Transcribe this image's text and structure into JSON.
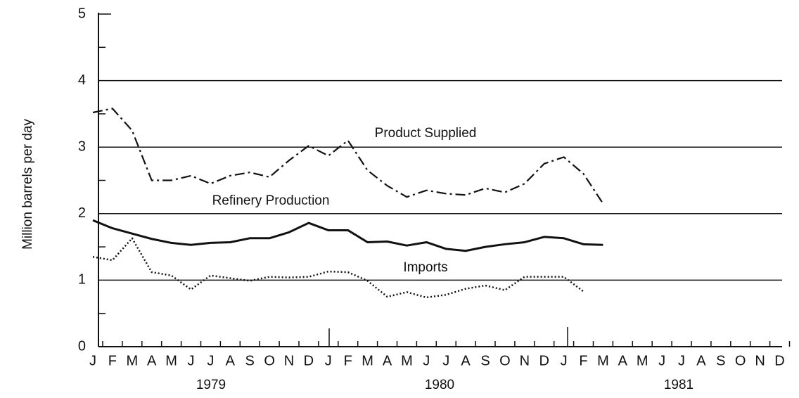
{
  "chart_data": {
    "type": "line",
    "y_label": "Million barrels per day",
    "categories": [
      "J",
      "F",
      "M",
      "A",
      "M",
      "J",
      "J",
      "A",
      "S",
      "O",
      "N",
      "D",
      "J",
      "F",
      "M",
      "A",
      "M",
      "J",
      "J",
      "A",
      "S",
      "O",
      "N",
      "D",
      "J",
      "F",
      "M",
      "A",
      "M",
      "J",
      "J",
      "A",
      "S",
      "O",
      "N",
      "D"
    ],
    "years": [
      "1979",
      "1980",
      "1981"
    ],
    "ylim": [
      0,
      5
    ],
    "yticks": [
      0,
      1,
      2,
      3,
      4,
      5
    ],
    "grid": true,
    "series": [
      {
        "name": "Product Supplied",
        "color": "#111111",
        "style": "dashdot",
        "values": [
          3.52,
          3.58,
          3.25,
          2.5,
          2.5,
          2.57,
          2.45,
          2.57,
          2.62,
          2.55,
          2.8,
          3.02,
          2.87,
          3.1,
          2.65,
          2.42,
          2.25,
          2.35,
          2.3,
          2.28,
          2.38,
          2.32,
          2.45,
          2.75,
          2.85,
          2.6,
          2.15,
          null,
          null,
          null,
          null,
          null,
          null,
          null,
          null,
          null
        ]
      },
      {
        "name": "Refinery Production",
        "color": "#111111",
        "style": "solid",
        "values": [
          1.9,
          1.78,
          1.7,
          1.62,
          1.56,
          1.53,
          1.56,
          1.57,
          1.63,
          1.63,
          1.72,
          1.86,
          1.75,
          1.75,
          1.57,
          1.58,
          1.52,
          1.57,
          1.47,
          1.44,
          1.5,
          1.54,
          1.57,
          1.65,
          1.63,
          1.54,
          1.53,
          null,
          null,
          null,
          null,
          null,
          null,
          null,
          null,
          null
        ]
      },
      {
        "name": "Imports",
        "color": "#111111",
        "style": "dotted",
        "values": [
          1.35,
          1.3,
          1.63,
          1.12,
          1.07,
          0.86,
          1.07,
          1.03,
          0.99,
          1.05,
          1.04,
          1.05,
          1.13,
          1.12,
          0.99,
          0.75,
          0.82,
          0.74,
          0.78,
          0.87,
          0.92,
          0.85,
          1.05,
          1.05,
          1.05,
          0.83,
          null,
          null,
          null,
          null,
          null,
          null,
          null,
          null,
          null,
          null
        ]
      }
    ]
  }
}
